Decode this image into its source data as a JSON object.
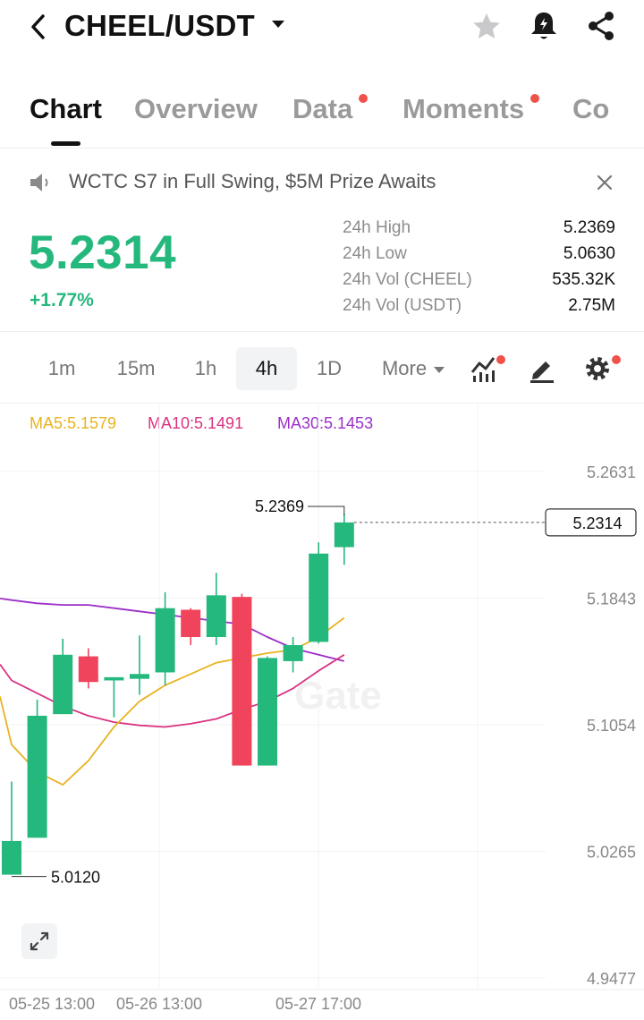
{
  "header": {
    "pair": "CHEEL/USDT",
    "icons": [
      "back-icon",
      "caret-down-icon",
      "star-icon",
      "price-alert-icon",
      "share-icon"
    ]
  },
  "tabs": [
    {
      "label": "Chart",
      "active": true,
      "dot": false
    },
    {
      "label": "Overview",
      "active": false,
      "dot": false
    },
    {
      "label": "Data",
      "active": false,
      "dot": true
    },
    {
      "label": "Moments",
      "active": false,
      "dot": true
    },
    {
      "label": "Co",
      "active": false,
      "dot": false
    }
  ],
  "announcement": {
    "text": "WCTC S7 in Full Swing, $5M Prize Awaits"
  },
  "ticker": {
    "price": "5.2314",
    "change": "+1.77%",
    "stats": [
      {
        "label": "24h High",
        "value": "5.2369"
      },
      {
        "label": "24h Low",
        "value": "5.0630"
      },
      {
        "label": "24h Vol (CHEEL)",
        "value": "535.32K"
      },
      {
        "label": "24h Vol (USDT)",
        "value": "2.75M"
      }
    ]
  },
  "intervals": {
    "items": [
      "1m",
      "15m",
      "1h",
      "4h",
      "1D"
    ],
    "active": "4h",
    "more_label": "More"
  },
  "ma_legend": {
    "ma5": "MA5:5.1579",
    "ma10": "MA10:5.1491",
    "ma30": "MA30:5.1453"
  },
  "colors": {
    "up": "#25b87d",
    "down": "#f0445c",
    "ma5": "#e8b321",
    "ma10": "#d93381",
    "ma30": "#9b2fc8",
    "alert_dot": "#f0524b"
  },
  "chart_data": {
    "type": "candlestick",
    "watermark": "Gate",
    "y_ticks": [
      "5.2631",
      "5.1843",
      "5.1054",
      "5.0265",
      "4.9477"
    ],
    "ylim": [
      4.9477,
      5.2631
    ],
    "x_labels": [
      "05-25 13:00",
      "05-26 13:00",
      "05-27 17:00"
    ],
    "current_price": "5.2314",
    "max_label": "5.2369",
    "min_label": "5.0120",
    "candles": [
      {
        "o": 5.012,
        "h": 5.07,
        "l": 5.012,
        "c": 5.033
      },
      {
        "o": 5.035,
        "h": 5.121,
        "l": 5.035,
        "c": 5.111
      },
      {
        "o": 5.112,
        "h": 5.159,
        "l": 5.112,
        "c": 5.149
      },
      {
        "o": 5.148,
        "h": 5.153,
        "l": 5.128,
        "c": 5.132
      },
      {
        "o": 5.133,
        "h": 5.135,
        "l": 5.11,
        "c": 5.135
      },
      {
        "o": 5.134,
        "h": 5.161,
        "l": 5.124,
        "c": 5.137
      },
      {
        "o": 5.138,
        "h": 5.188,
        "l": 5.13,
        "c": 5.178
      },
      {
        "o": 5.177,
        "h": 5.178,
        "l": 5.155,
        "c": 5.16
      },
      {
        "o": 5.16,
        "h": 5.2,
        "l": 5.155,
        "c": 5.186
      },
      {
        "o": 5.185,
        "h": 5.187,
        "l": 5.08,
        "c": 5.08
      },
      {
        "o": 5.08,
        "h": 5.148,
        "l": 5.08,
        "c": 5.147
      },
      {
        "o": 5.145,
        "h": 5.16,
        "l": 5.138,
        "c": 5.155
      },
      {
        "o": 5.157,
        "h": 5.219,
        "l": 5.156,
        "c": 5.212
      },
      {
        "o": 5.216,
        "h": 5.2369,
        "l": 5.205,
        "c": 5.2314
      }
    ],
    "ma5": [
      5.093,
      5.076,
      5.068,
      5.083,
      5.104,
      5.12,
      5.13,
      5.137,
      5.144,
      5.147,
      5.15,
      5.152,
      5.16,
      5.172
    ],
    "ma10": [
      5.133,
      5.125,
      5.117,
      5.111,
      5.107,
      5.105,
      5.104,
      5.106,
      5.109,
      5.115,
      5.12,
      5.128,
      5.139,
      5.149
    ],
    "ma30": [
      5.183,
      5.181,
      5.18,
      5.18,
      5.178,
      5.176,
      5.174,
      5.172,
      5.17,
      5.168,
      5.16,
      5.153,
      5.149,
      5.145
    ]
  }
}
